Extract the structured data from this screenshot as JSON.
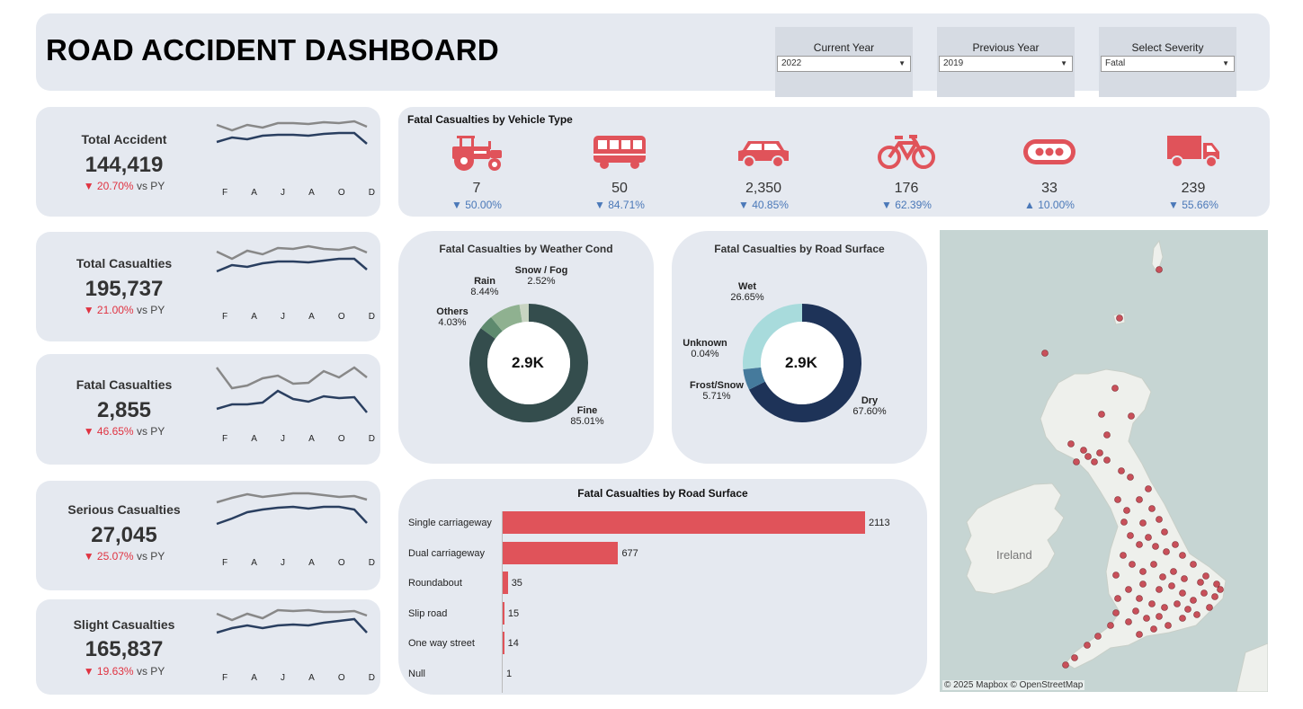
{
  "header": {
    "title": "ROAD ACCIDENT DASHBOARD",
    "filters": [
      {
        "label": "Current Year",
        "value": "2022"
      },
      {
        "label": "Previous Year",
        "value": "2019"
      },
      {
        "label": "Select Severity",
        "value": "Fatal"
      }
    ]
  },
  "kpis": [
    {
      "title": "Total Accident",
      "value": "144,419",
      "delta": "▼ 20.70%",
      "suffix": " vs PY"
    },
    {
      "title": "Total Casualties",
      "value": "195,737",
      "delta": "▼ 21.00%",
      "suffix": " vs PY"
    },
    {
      "title": "Fatal Casualties",
      "value": "2,855",
      "delta": "▼ 46.65%",
      "suffix": " vs PY"
    },
    {
      "title": "Serious Casualties",
      "value": "27,045",
      "delta": "▼ 25.07%",
      "suffix": " vs PY"
    },
    {
      "title": "Slight Casualties",
      "value": "165,837",
      "delta": "▼ 19.63%",
      "suffix": " vs PY"
    }
  ],
  "months": [
    "F",
    "A",
    "J",
    "A",
    "O",
    "D"
  ],
  "vehicle": {
    "title": "Fatal Casualties by Vehicle Type",
    "items": [
      {
        "icon": "tractor-icon",
        "value": "7",
        "delta": "▼ 50.00%"
      },
      {
        "icon": "bus-icon",
        "value": "50",
        "delta": "▼ 84.71%"
      },
      {
        "icon": "car-icon",
        "value": "2,350",
        "delta": "▼ 40.85%"
      },
      {
        "icon": "bicycle-icon",
        "value": "176",
        "delta": "▼ 62.39%"
      },
      {
        "icon": "more-icon",
        "value": "33",
        "delta": "▲ 10.00%"
      },
      {
        "icon": "truck-icon",
        "value": "239",
        "delta": "▼ 55.66%"
      }
    ],
    "color": "#e0535a"
  },
  "weather": {
    "title": "Fatal Casualties by Weather Cond",
    "center": "2.9K",
    "slices": [
      {
        "name": "Fine",
        "pct": "85.01%",
        "value": 85.01,
        "color": "#344d4d"
      },
      {
        "name": "Others",
        "pct": "4.03%",
        "value": 4.03,
        "color": "#5e8a6e"
      },
      {
        "name": "Rain",
        "pct": "8.44%",
        "value": 8.44,
        "color": "#8fb190"
      },
      {
        "name": "Snow / Fog",
        "pct": "2.52%",
        "value": 2.52,
        "color": "#c8d4c2"
      }
    ]
  },
  "surface": {
    "title": "Fatal Casualties by Road Surface",
    "center": "2.9K",
    "slices": [
      {
        "name": "Dry",
        "pct": "67.60%",
        "value": 67.6,
        "color": "#1e3358"
      },
      {
        "name": "Frost/Snow",
        "pct": "5.71%",
        "value": 5.71,
        "color": "#457a9c"
      },
      {
        "name": "Unknown",
        "pct": "0.04%",
        "value": 0.04,
        "color": "#7fb0c0"
      },
      {
        "name": "Wet",
        "pct": "26.65%",
        "value": 26.65,
        "color": "#a8dbdc"
      }
    ]
  },
  "roadtype": {
    "title": "Fatal Casualties by Road Surface",
    "bars": [
      {
        "label": "Single carriageway",
        "value": 2113
      },
      {
        "label": "Dual carriageway",
        "value": 677
      },
      {
        "label": "Roundabout",
        "value": 35
      },
      {
        "label": "Slip road",
        "value": 15
      },
      {
        "label": "One way street",
        "value": 14
      },
      {
        "label": "Null",
        "value": 1
      }
    ],
    "color": "#e0535a"
  },
  "map": {
    "country_label": "Ireland",
    "attribution": "© 2025 Mapbox  © OpenStreetMap"
  }
}
